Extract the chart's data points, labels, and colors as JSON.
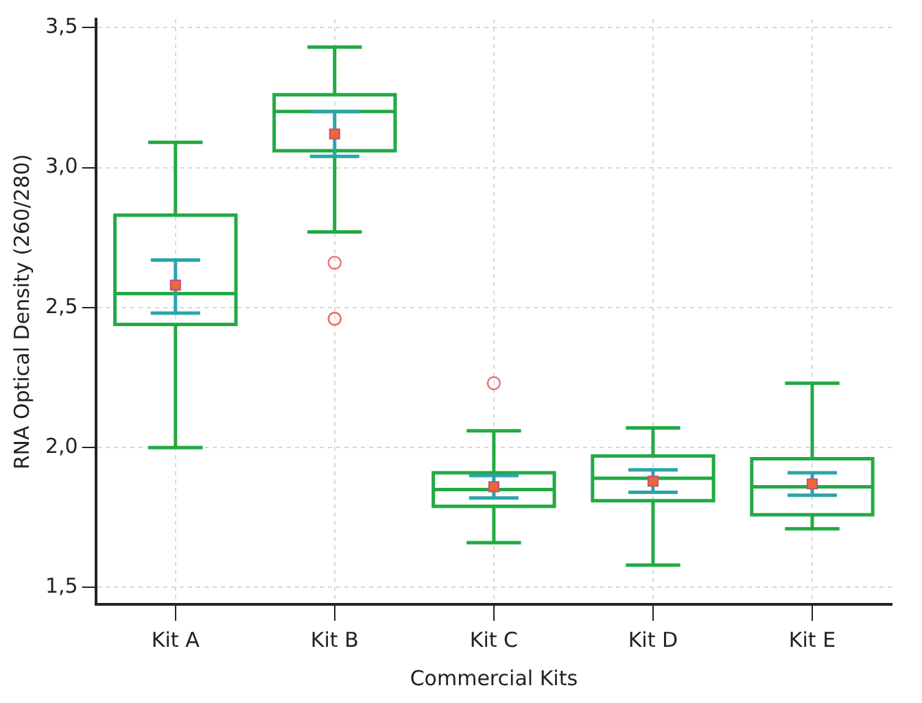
{
  "chart_data": {
    "type": "box",
    "xlabel": "Commercial Kits",
    "ylabel": "RNA Optical Density (260/280)",
    "categories": [
      "Kit A",
      "Kit B",
      "Kit C",
      "Kit D",
      "Kit E"
    ],
    "ylim": [
      1.44,
      3.53
    ],
    "yticks": [
      {
        "value": 1.5,
        "label": "1,5"
      },
      {
        "value": 2.0,
        "label": "2,0"
      },
      {
        "value": 2.5,
        "label": "2,5"
      },
      {
        "value": 3.0,
        "label": "3,0"
      },
      {
        "value": 3.5,
        "label": "3,5"
      }
    ],
    "grid": true,
    "legend": false,
    "series": [
      {
        "color": "#22aa44",
        "boxes": [
          {
            "low": 2.0,
            "q1": 2.44,
            "median": 2.55,
            "q3": 2.83,
            "high": 3.09
          },
          {
            "low": 2.77,
            "q1": 3.06,
            "median": 3.2,
            "q3": 3.26,
            "high": 3.43,
            "outliers": [
              2.66,
              2.46,
              2.46
            ]
          },
          {
            "low": 1.66,
            "q1": 1.79,
            "median": 1.85,
            "q3": 1.91,
            "high": 2.06,
            "outliers": [
              2.23
            ]
          },
          {
            "low": 1.58,
            "q1": 1.81,
            "median": 1.89,
            "q3": 1.97,
            "high": 2.07
          },
          {
            "low": 1.71,
            "q1": 1.76,
            "median": 1.86,
            "q3": 1.96,
            "high": 2.23
          }
        ]
      },
      {
        "type": "scatter",
        "color": "#ee6633",
        "marker": "square",
        "x": [
          "Kit A",
          "Kit B",
          "Kit C",
          "Kit D",
          "Kit E"
        ],
        "values": [
          2.58,
          3.12,
          1.86,
          1.88,
          1.87
        ],
        "errors": [
          [
            2.48,
            2.67
          ],
          [
            3.04,
            3.2
          ],
          [
            1.82,
            1.9
          ],
          [
            1.84,
            1.92
          ],
          [
            1.83,
            1.91
          ]
        ]
      }
    ]
  }
}
